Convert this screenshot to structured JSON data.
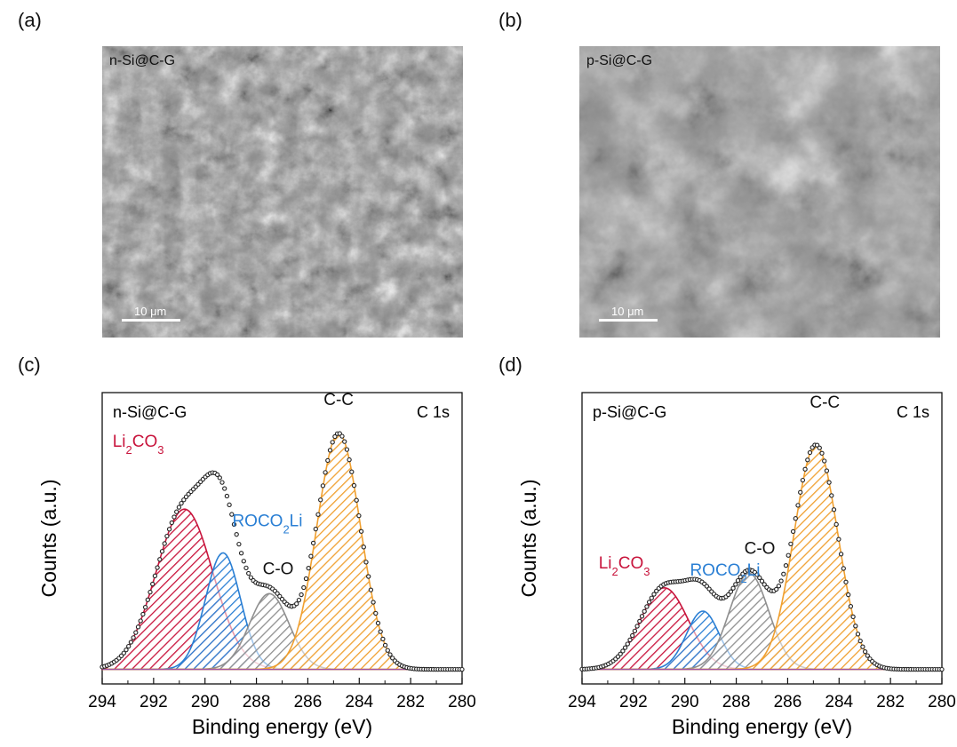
{
  "panels": {
    "a": {
      "label": "(a)",
      "sample": "n-Si@C-G",
      "scale_text": "10 μm"
    },
    "b": {
      "label": "(b)",
      "sample": "p-Si@C-G",
      "scale_text": "10 μm"
    },
    "c": {
      "label": "(c)"
    },
    "d": {
      "label": "(d)"
    }
  },
  "colors": {
    "li2co3": "#c8143c",
    "roco2li": "#2a7fd4",
    "co": "#8f8f8f",
    "cc": "#f0a030",
    "envelope": "#222222"
  },
  "chart_data": [
    {
      "type": "area",
      "panel": "c",
      "sample_label": "n-Si@C-G",
      "region_label": "C 1s",
      "xlabel": "Binding energy (eV)",
      "ylabel": "Counts (a.u.)",
      "xlim": [
        294,
        280
      ],
      "x_reversed": true,
      "xticks": [
        "294",
        "292",
        "290",
        "288",
        "286",
        "284",
        "282",
        "280"
      ],
      "ylim": [
        0,
        1.0
      ],
      "baseline": 0.05,
      "series": [
        {
          "name": "Li2CO3",
          "label_main": "Li",
          "label_sub1": "2",
          "label_mid": "CO",
          "label_sub2": "3",
          "center": 290.8,
          "fwhm": 2.6,
          "height": 0.55,
          "color_key": "li2co3"
        },
        {
          "name": "ROCO2Li",
          "label_main": "ROCO",
          "label_sub1": "2",
          "label_mid": "Li",
          "label_sub2": "",
          "center": 289.3,
          "fwhm": 1.6,
          "height": 0.4,
          "color_key": "roco2li"
        },
        {
          "name": "C-O",
          "label_main": "C-O",
          "label_sub1": "",
          "label_mid": "",
          "label_sub2": "",
          "center": 287.5,
          "fwhm": 1.8,
          "height": 0.26,
          "color_key": "co"
        },
        {
          "name": "C-C",
          "label_main": "C-C",
          "label_sub1": "",
          "label_mid": "",
          "label_sub2": "",
          "center": 284.8,
          "fwhm": 2.0,
          "height": 0.81,
          "color_key": "cc"
        }
      ]
    },
    {
      "type": "area",
      "panel": "d",
      "sample_label": "p-Si@C-G",
      "region_label": "C 1s",
      "xlabel": "Binding energy (eV)",
      "ylabel": "Counts (a.u.)",
      "xlim": [
        294,
        280
      ],
      "x_reversed": true,
      "xticks": [
        "294",
        "292",
        "290",
        "288",
        "286",
        "284",
        "282",
        "280"
      ],
      "ylim": [
        0,
        1.0
      ],
      "baseline": 0.05,
      "series": [
        {
          "name": "Li2CO3",
          "label_main": "Li",
          "label_sub1": "2",
          "label_mid": "CO",
          "label_sub2": "3",
          "center": 290.8,
          "fwhm": 2.2,
          "height": 0.28,
          "color_key": "li2co3"
        },
        {
          "name": "ROCO2Li",
          "label_main": "ROCO",
          "label_sub1": "2",
          "label_mid": "Li",
          "label_sub2": "",
          "center": 289.3,
          "fwhm": 1.5,
          "height": 0.2,
          "color_key": "roco2li"
        },
        {
          "name": "C-O",
          "label_main": "C-O",
          "label_sub1": "",
          "label_mid": "",
          "label_sub2": "",
          "center": 287.5,
          "fwhm": 1.8,
          "height": 0.33,
          "color_key": "co"
        },
        {
          "name": "C-C",
          "label_main": "C-C",
          "label_sub1": "",
          "label_mid": "",
          "label_sub2": "",
          "center": 284.9,
          "fwhm": 2.0,
          "height": 0.77,
          "color_key": "cc"
        }
      ]
    }
  ]
}
